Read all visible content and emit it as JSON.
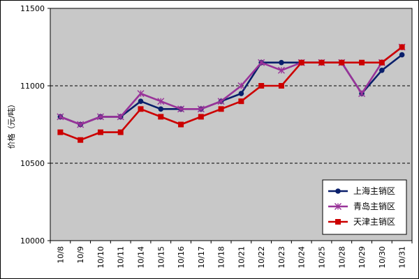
{
  "chart_data": {
    "type": "line",
    "title": "",
    "xlabel": "",
    "ylabel": "价格（元/吨）",
    "ylim": [
      10000,
      11500
    ],
    "yticks": [
      10000,
      10500,
      11000,
      11500
    ],
    "gridlines": [
      10500,
      11000
    ],
    "categories": [
      "10/8",
      "10/9",
      "10/10",
      "10/11",
      "10/14",
      "10/15",
      "10/16",
      "10/17",
      "10/18",
      "10/21",
      "10/22",
      "10/23",
      "10/24",
      "10/25",
      "10/28",
      "10/29",
      "10/30",
      "10/31"
    ],
    "series": [
      {
        "name": "上海主销区",
        "color": "#0A1F6B",
        "marker": "circle",
        "values": [
          10800,
          10750,
          10800,
          10800,
          10900,
          10850,
          10850,
          10850,
          10900,
          10950,
          11150,
          11150,
          11150,
          11150,
          11150,
          10950,
          11100,
          11200
        ]
      },
      {
        "name": "青岛主销区",
        "color": "#993399",
        "marker": "asterisk",
        "values": [
          10800,
          10750,
          10800,
          10800,
          10950,
          10900,
          10850,
          10850,
          10900,
          11000,
          11150,
          11100,
          11150,
          11150,
          11150,
          10950,
          11150,
          11250
        ]
      },
      {
        "name": "天津主销区",
        "color": "#CC0000",
        "marker": "square",
        "values": [
          10700,
          10650,
          10700,
          10700,
          10850,
          10800,
          10750,
          10800,
          10850,
          10900,
          11000,
          11000,
          11150,
          11150,
          11150,
          11150,
          11150,
          11250
        ]
      }
    ],
    "legend_position": "bottom-right"
  }
}
